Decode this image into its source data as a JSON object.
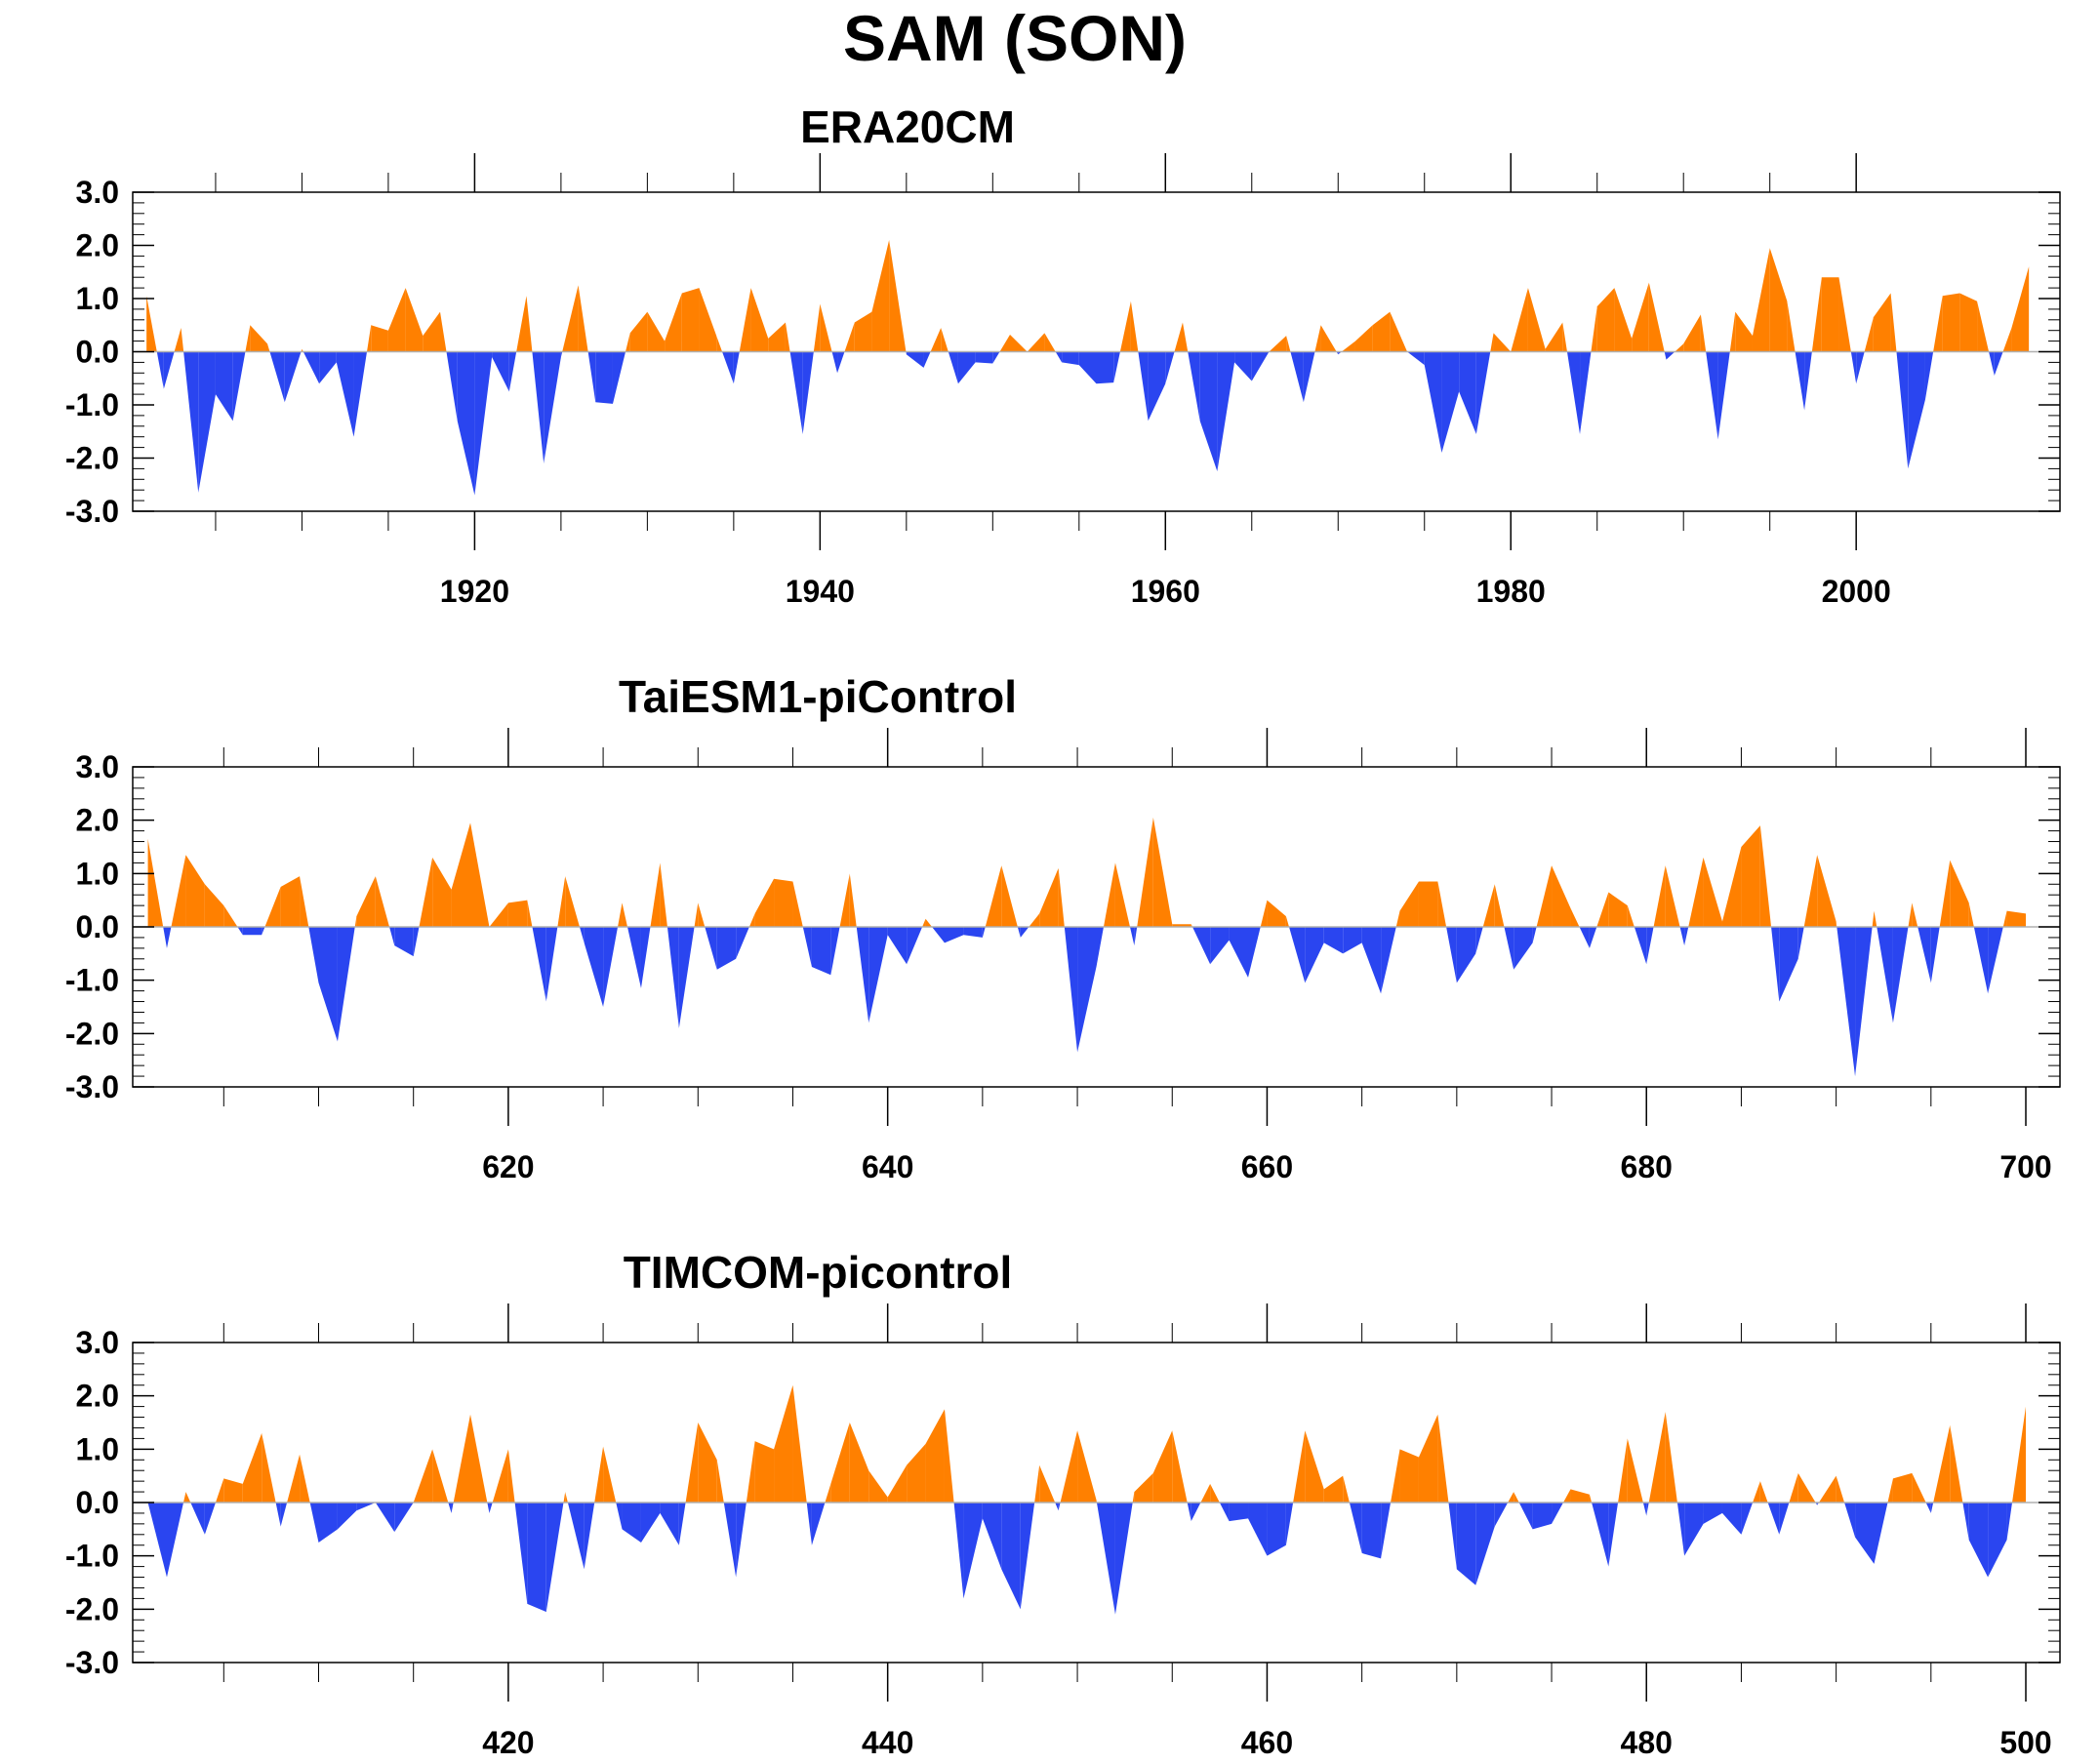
{
  "figure_title": "SAM (SON)",
  "colors": {
    "positive": "#ff8000",
    "negative": "#2a45f0",
    "axis": "#000000"
  },
  "chart_data": [
    {
      "type": "area",
      "title": "ERA20CM",
      "xlabel": "",
      "ylabel": "",
      "x_start": 1901,
      "xlim": [
        1900.2,
        2011.8
      ],
      "ylim": [
        -3.0,
        3.0
      ],
      "x_ticks": [
        1920,
        1940,
        1960,
        1980,
        2000
      ],
      "x_tick_labels": [
        "1920",
        "1940",
        "1960",
        "1980",
        "2000"
      ],
      "y_ticks": [
        3.0,
        2.0,
        1.0,
        0.0,
        -1.0,
        -2.0,
        -3.0
      ],
      "y_tick_labels": [
        "3.0",
        "2.0",
        "1.0",
        "0.0",
        "-1.0",
        "-2.0",
        "-3.0"
      ],
      "grid": false,
      "legend": "none",
      "values": [
        1.05,
        -0.7,
        0.45,
        -2.65,
        -0.8,
        -1.3,
        0.5,
        0.15,
        -0.95,
        0.05,
        -0.6,
        -0.2,
        -1.6,
        0.5,
        0.4,
        1.2,
        0.3,
        0.75,
        -1.3,
        -2.7,
        -0.1,
        -0.75,
        1.05,
        -2.1,
        -0.1,
        1.25,
        -0.95,
        -0.98,
        0.35,
        0.75,
        0.2,
        1.1,
        1.2,
        0.3,
        -0.6,
        1.2,
        0.25,
        0.55,
        -1.55,
        0.9,
        -0.4,
        0.55,
        0.75,
        2.1,
        -0.05,
        -0.3,
        0.45,
        -0.6,
        -0.2,
        -0.22,
        0.32,
        0.0,
        0.35,
        -0.2,
        -0.25,
        -0.6,
        -0.58,
        0.95,
        -1.3,
        -0.6,
        0.55,
        -1.3,
        -2.25,
        -0.2,
        -0.55,
        0.0,
        0.3,
        -0.95,
        0.5,
        -0.05,
        0.2,
        0.5,
        0.75,
        0.0,
        -0.25,
        -1.9,
        -0.75,
        -1.55,
        0.35,
        0.0,
        1.2,
        0.05,
        0.55,
        -1.55,
        0.85,
        1.2,
        0.25,
        1.3,
        -0.15,
        0.15,
        0.7,
        -1.65,
        0.75,
        0.3,
        1.95,
        0.95,
        -1.1,
        1.4,
        1.4,
        -0.6,
        0.65,
        1.1,
        -2.2,
        -0.9,
        1.05,
        1.1,
        0.95,
        -0.45,
        0.45,
        1.6
      ]
    },
    {
      "type": "area",
      "title": "TaiESM1-piControl",
      "xlabel": "",
      "ylabel": "",
      "x_start": 601,
      "xlim": [
        600.2,
        701.8
      ],
      "ylim": [
        -3.0,
        3.0
      ],
      "x_ticks": [
        620,
        640,
        660,
        680,
        700
      ],
      "x_tick_labels": [
        "620",
        "640",
        "660",
        "680",
        "700"
      ],
      "y_ticks": [
        3.0,
        2.0,
        1.0,
        0.0,
        -1.0,
        -2.0,
        -3.0
      ],
      "y_tick_labels": [
        "3.0",
        "2.0",
        "1.0",
        "0.0",
        "-1.0",
        "-2.0",
        "-3.0"
      ],
      "grid": false,
      "legend": "none",
      "values": [
        1.65,
        -0.4,
        1.35,
        0.8,
        0.4,
        -0.15,
        -0.15,
        0.75,
        0.95,
        -1.05,
        -2.15,
        0.2,
        0.95,
        -0.35,
        -0.55,
        1.3,
        0.7,
        1.95,
        0.0,
        0.45,
        0.5,
        -1.4,
        0.95,
        -0.3,
        -1.5,
        0.45,
        -1.15,
        1.2,
        -1.9,
        0.45,
        -0.8,
        -0.6,
        0.25,
        0.9,
        0.85,
        -0.75,
        -0.9,
        1.0,
        -1.8,
        -0.15,
        -0.7,
        0.15,
        -0.3,
        -0.15,
        -0.2,
        1.15,
        -0.2,
        0.25,
        1.1,
        -2.35,
        -0.75,
        1.2,
        -0.35,
        2.05,
        0.05,
        0.05,
        -0.7,
        -0.25,
        -0.95,
        0.5,
        0.2,
        -1.05,
        -0.3,
        -0.5,
        -0.3,
        -1.25,
        0.3,
        0.85,
        0.85,
        -1.05,
        -0.5,
        0.8,
        -0.8,
        -0.3,
        1.15,
        0.35,
        -0.4,
        0.65,
        0.4,
        -0.7,
        1.15,
        -0.35,
        1.3,
        0.1,
        1.5,
        1.9,
        -1.4,
        -0.6,
        1.35,
        0.1,
        -2.8,
        0.3,
        -1.8,
        0.45,
        -1.05,
        1.25,
        0.45,
        -1.25,
        0.3,
        0.25
      ]
    },
    {
      "type": "area",
      "title": "TIMCOM-picontrol",
      "xlabel": "",
      "ylabel": "",
      "x_start": 401,
      "xlim": [
        400.2,
        501.8
      ],
      "ylim": [
        -3.0,
        3.0
      ],
      "x_ticks": [
        420,
        440,
        460,
        480,
        500
      ],
      "x_tick_labels": [
        "420",
        "440",
        "460",
        "480",
        "500"
      ],
      "y_ticks": [
        3.0,
        2.0,
        1.0,
        0.0,
        -1.0,
        -2.0,
        -3.0
      ],
      "y_tick_labels": [
        "3.0",
        "2.0",
        "1.0",
        "0.0",
        "-1.0",
        "-2.0",
        "-3.0"
      ],
      "grid": false,
      "legend": "none",
      "values": [
        0.0,
        -1.4,
        0.2,
        -0.6,
        0.45,
        0.35,
        1.3,
        -0.45,
        0.9,
        -0.75,
        -0.5,
        -0.15,
        0.0,
        -0.55,
        0.0,
        1.0,
        -0.2,
        1.65,
        -0.2,
        1.0,
        -1.9,
        -2.05,
        0.2,
        -1.25,
        1.05,
        -0.5,
        -0.75,
        -0.2,
        -0.8,
        1.5,
        0.8,
        -1.4,
        1.15,
        1.0,
        2.2,
        -0.8,
        0.35,
        1.5,
        0.6,
        0.1,
        0.7,
        1.1,
        1.75,
        -1.8,
        -0.3,
        -1.25,
        -2.0,
        0.7,
        -0.15,
        1.35,
        0.05,
        -2.1,
        0.2,
        0.55,
        1.35,
        -0.35,
        0.35,
        -0.35,
        -0.3,
        -1.0,
        -0.8,
        1.35,
        0.25,
        0.5,
        -0.95,
        -1.05,
        1.0,
        0.85,
        1.65,
        -1.25,
        -1.55,
        -0.45,
        0.2,
        -0.5,
        -0.4,
        0.25,
        0.15,
        -1.2,
        1.2,
        -0.25,
        1.7,
        -1.0,
        -0.4,
        -0.2,
        -0.6,
        0.4,
        -0.6,
        0.55,
        -0.05,
        0.5,
        -0.65,
        -1.15,
        0.45,
        0.55,
        -0.2,
        1.45,
        -0.7,
        -1.4,
        -0.7,
        1.8
      ]
    }
  ]
}
